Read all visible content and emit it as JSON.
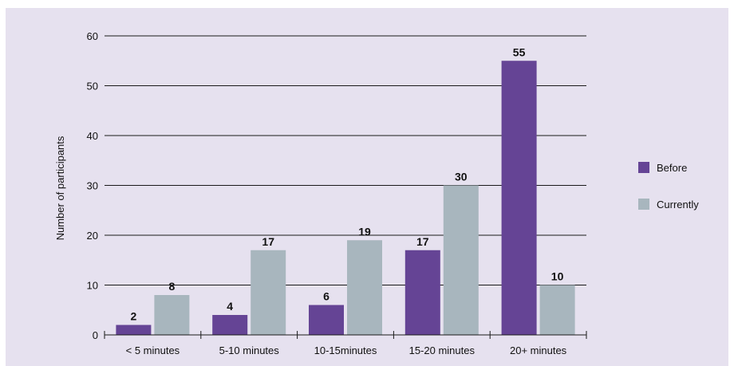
{
  "chart_data": {
    "type": "bar",
    "title": "",
    "xlabel": "",
    "ylabel": "Number of participants",
    "ylim": [
      0,
      60
    ],
    "yticks": [
      0,
      10,
      20,
      30,
      40,
      50,
      60
    ],
    "grid": true,
    "legend_position": "right",
    "categories": [
      "< 5 minutes",
      "5-10 minutes",
      "10-15minutes",
      "15-20 minutes",
      "20+ minutes"
    ],
    "series": [
      {
        "name": "Before",
        "color": "#654495",
        "values": [
          2,
          4,
          6,
          17,
          55
        ]
      },
      {
        "name": "Currently",
        "color": "#a8b6be",
        "values": [
          8,
          17,
          19,
          30,
          10
        ]
      }
    ]
  }
}
